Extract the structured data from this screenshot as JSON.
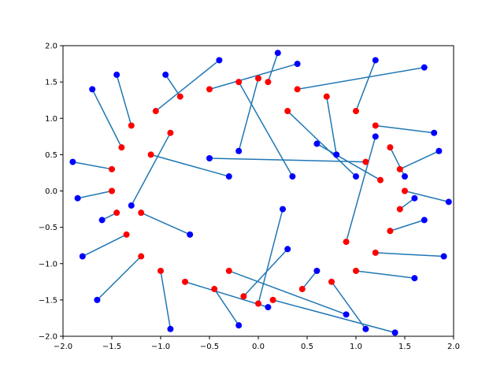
{
  "chart_data": {
    "type": "scatter",
    "title": "",
    "xlabel": "",
    "ylabel": "",
    "xlim": [
      -2,
      2
    ],
    "ylim": [
      -2,
      2
    ],
    "grid": false,
    "legend": "none",
    "x_ticks": [
      "−2.0",
      "−1.5",
      "−1.0",
      "−0.5",
      "0.0",
      "0.5",
      "1.0",
      "1.5",
      "2.0"
    ],
    "y_ticks": [
      "−2.0",
      "−1.5",
      "−1.0",
      "−0.5",
      "0.0",
      "0.5",
      "1.0",
      "1.5",
      "2.0"
    ],
    "colors": {
      "red": "#ff0000",
      "blue": "#0000ff",
      "line": "#1f77b4"
    },
    "description": "Red points: ring of radius ~1.5 (noisy). Blue points: same ring displaced; each red point joined to its blue counterpart by a line segment.",
    "red_points": [
      [
        -1.5,
        0.3
      ],
      [
        -1.4,
        0.6
      ],
      [
        -1.45,
        -0.3
      ],
      [
        -1.35,
        -0.6
      ],
      [
        -1.3,
        0.9
      ],
      [
        -1.2,
        -0.9
      ],
      [
        -1.05,
        1.1
      ],
      [
        -1.0,
        -1.1
      ],
      [
        -0.8,
        1.3
      ],
      [
        -0.75,
        -1.25
      ],
      [
        -0.5,
        1.4
      ],
      [
        -0.45,
        -1.35
      ],
      [
        -0.2,
        1.5
      ],
      [
        -0.15,
        -1.45
      ],
      [
        0.1,
        1.5
      ],
      [
        0.15,
        -1.5
      ],
      [
        0.4,
        1.4
      ],
      [
        0.45,
        -1.35
      ],
      [
        0.7,
        1.3
      ],
      [
        0.75,
        -1.25
      ],
      [
        1.0,
        1.1
      ],
      [
        1.0,
        -1.1
      ],
      [
        1.2,
        0.9
      ],
      [
        1.2,
        -0.85
      ],
      [
        1.35,
        0.6
      ],
      [
        1.35,
        -0.55
      ],
      [
        1.45,
        0.3
      ],
      [
        1.45,
        -0.25
      ],
      [
        1.5,
        0.0
      ],
      [
        -1.5,
        0.0
      ],
      [
        0.0,
        1.55
      ],
      [
        0.0,
        -1.55
      ],
      [
        -1.1,
        0.5
      ],
      [
        -0.9,
        0.8
      ],
      [
        1.1,
        0.4
      ],
      [
        0.9,
        -0.7
      ],
      [
        -0.3,
        -1.1
      ],
      [
        0.3,
        1.1
      ],
      [
        -1.2,
        -0.3
      ],
      [
        1.25,
        0.15
      ]
    ],
    "blue_points": [
      [
        -1.9,
        0.4
      ],
      [
        -1.7,
        1.4
      ],
      [
        -1.6,
        -0.4
      ],
      [
        -1.8,
        -0.9
      ],
      [
        -1.45,
        1.6
      ],
      [
        -1.65,
        -1.5
      ],
      [
        -0.4,
        1.8
      ],
      [
        -0.9,
        -1.9
      ],
      [
        -0.95,
        1.6
      ],
      [
        0.1,
        -1.6
      ],
      [
        0.4,
        1.75
      ],
      [
        -0.2,
        -1.85
      ],
      [
        0.35,
        0.2
      ],
      [
        0.3,
        -0.8
      ],
      [
        0.2,
        1.9
      ],
      [
        1.4,
        -1.95
      ],
      [
        1.7,
        1.7
      ],
      [
        0.6,
        -1.1
      ],
      [
        0.8,
        0.5
      ],
      [
        1.1,
        -1.9
      ],
      [
        1.2,
        1.8
      ],
      [
        1.6,
        -1.2
      ],
      [
        1.8,
        0.8
      ],
      [
        1.9,
        -0.9
      ],
      [
        1.5,
        0.2
      ],
      [
        1.7,
        -0.4
      ],
      [
        1.85,
        0.55
      ],
      [
        1.6,
        -0.1
      ],
      [
        1.95,
        -0.15
      ],
      [
        -1.85,
        -0.1
      ],
      [
        -0.2,
        0.55
      ],
      [
        0.25,
        -0.25
      ],
      [
        -0.3,
        0.2
      ],
      [
        -1.3,
        -0.2
      ],
      [
        -0.5,
        0.45
      ],
      [
        1.2,
        0.75
      ],
      [
        0.9,
        -1.7
      ],
      [
        1.0,
        0.2
      ],
      [
        -0.7,
        -0.6
      ],
      [
        0.6,
        0.65
      ]
    ]
  }
}
